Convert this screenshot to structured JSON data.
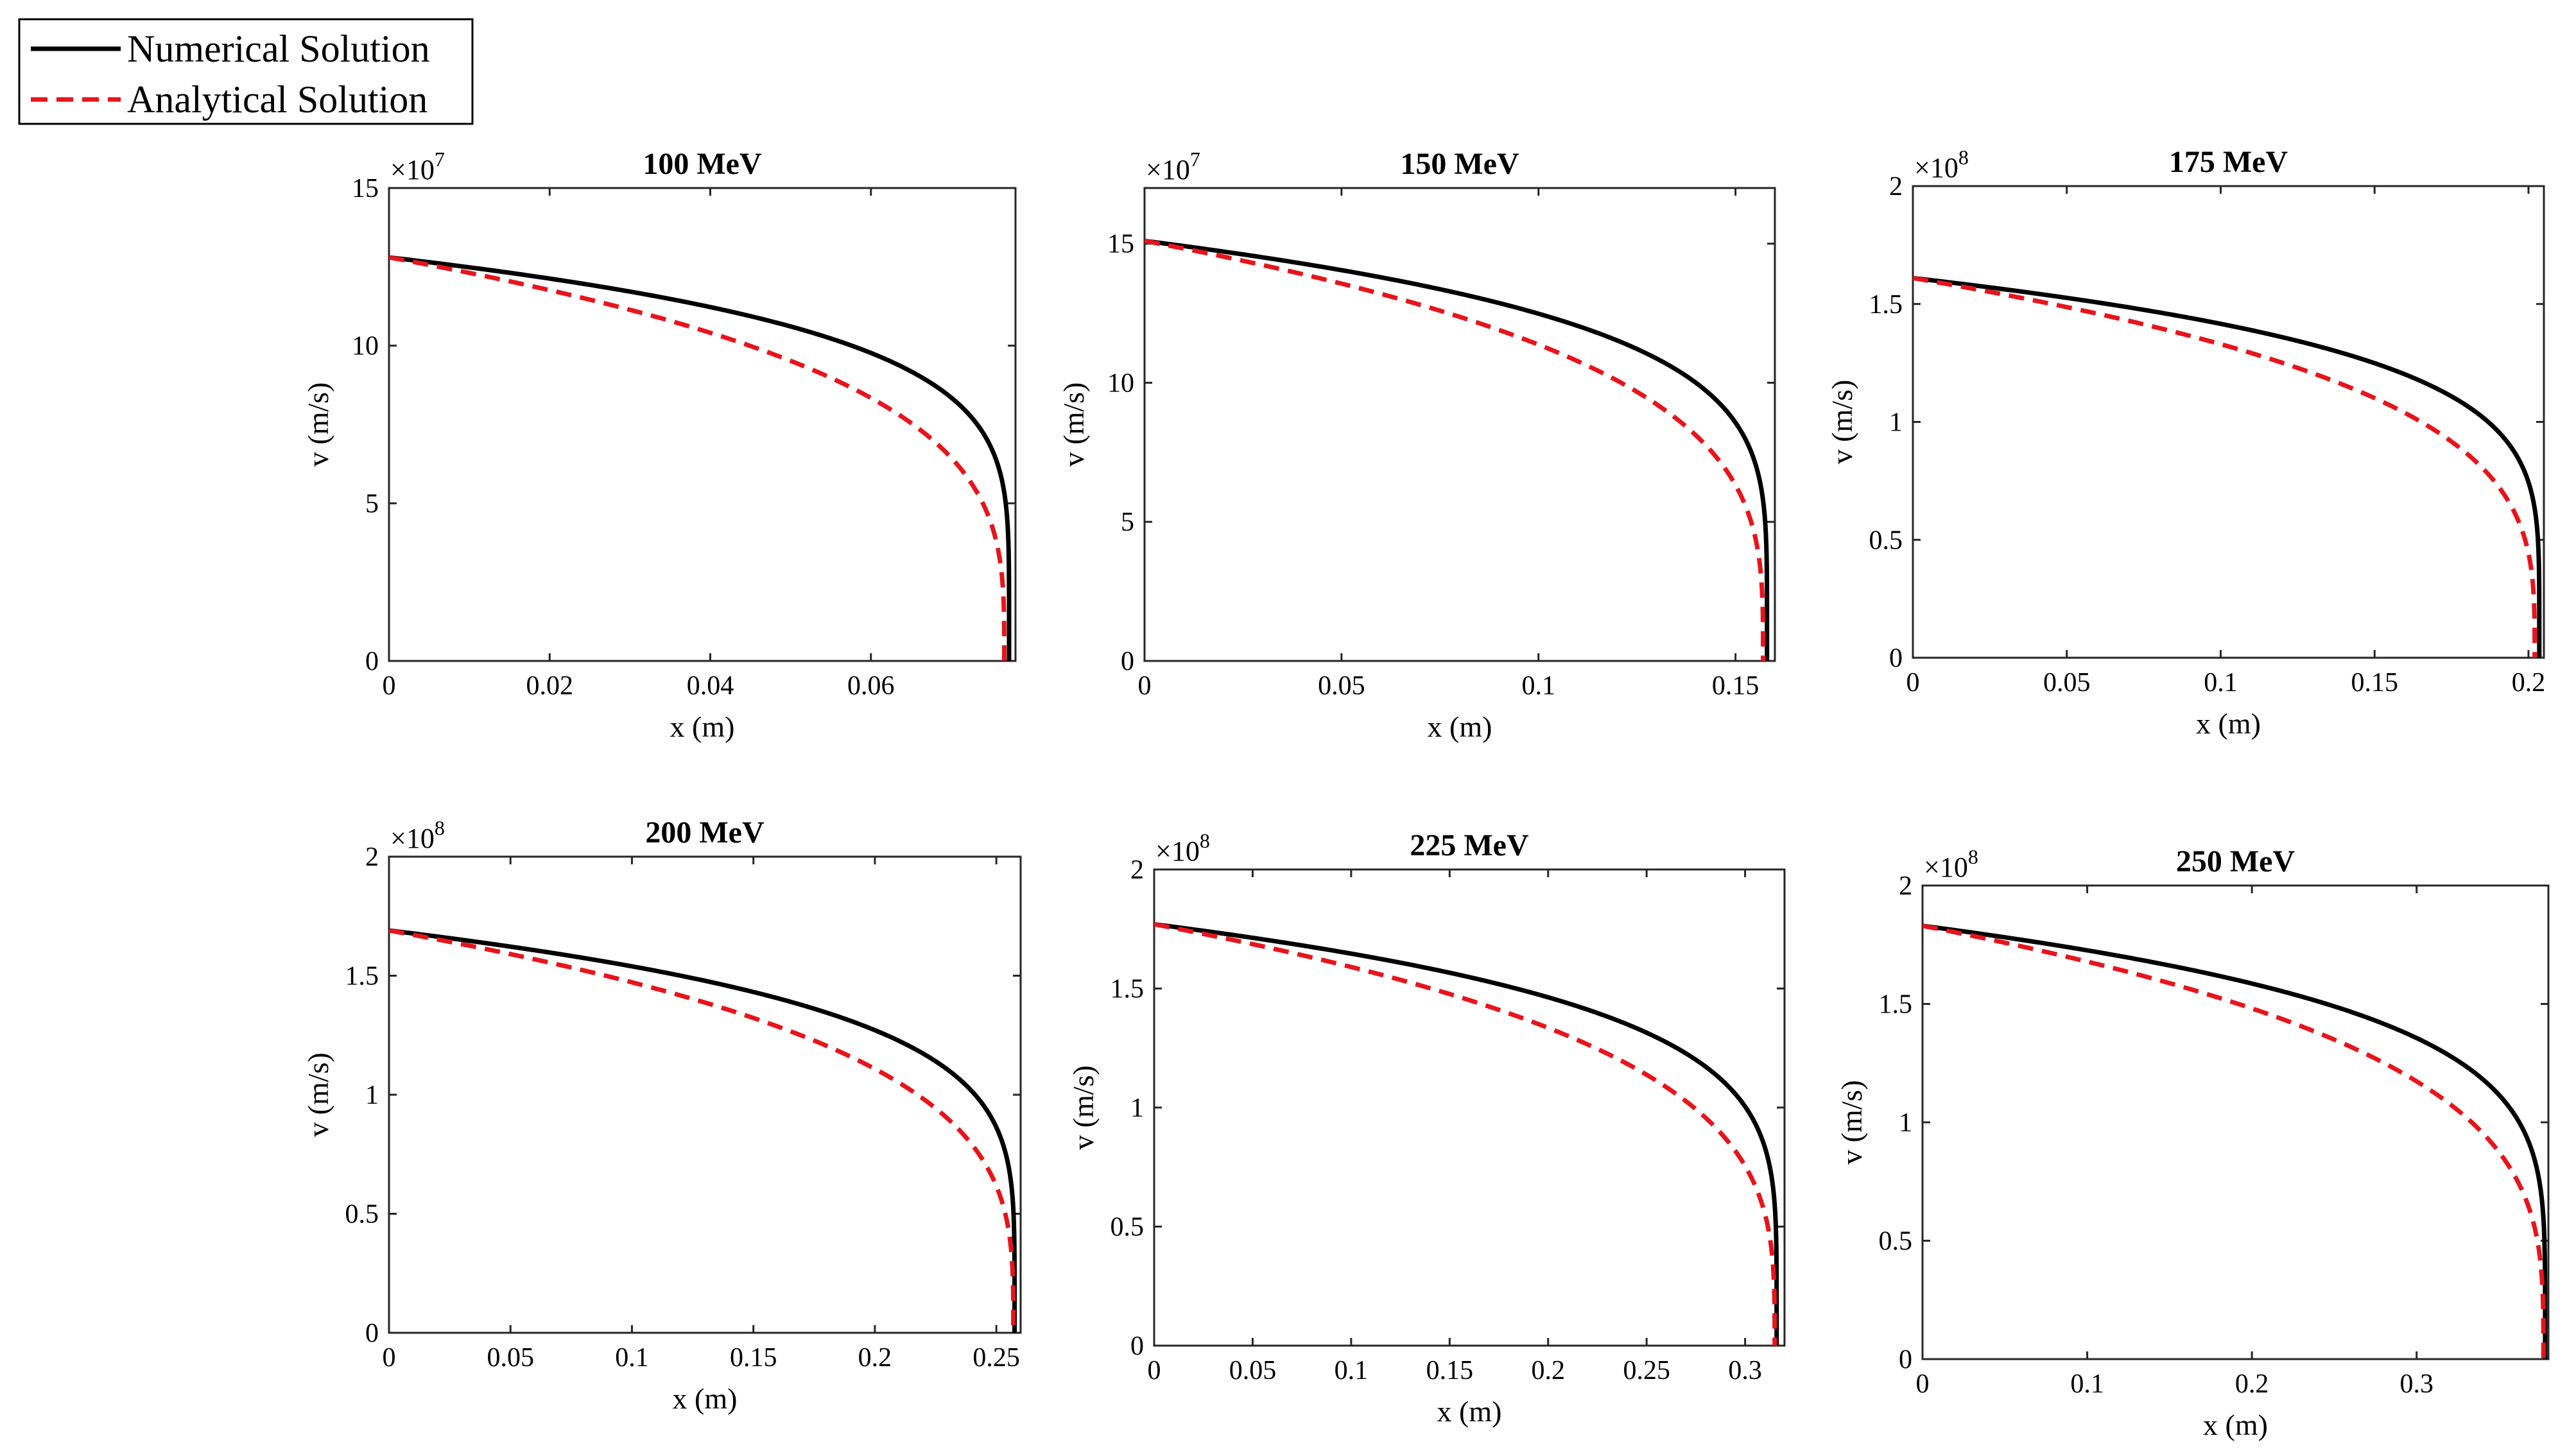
{
  "legend": {
    "entries": [
      {
        "label": "Numerical Solution",
        "color": "#000000",
        "style": "solid"
      },
      {
        "label": "Analytical Solution",
        "color": "#e8141c",
        "style": "dashed"
      }
    ],
    "position": "top-left"
  },
  "chart_data": [
    {
      "type": "line",
      "title": "100 MeV",
      "xlabel": "x (m)",
      "ylabel": "v (m/s)",
      "xlim": [
        0,
        0.078
      ],
      "ylim": [
        0,
        15
      ],
      "y_multiplier": "×10",
      "y_exponent": "7",
      "xticks": [
        0,
        0.02,
        0.04,
        0.06
      ],
      "xtick_labels": [
        "0",
        "0.02",
        "0.04",
        "0.06"
      ],
      "yticks": [
        0,
        5,
        10,
        15
      ],
      "ytick_labels": [
        "0",
        "5",
        "10",
        "15"
      ],
      "series": [
        {
          "name": "Numerical Solution",
          "v0": 12.8,
          "range": 0.0772,
          "shape_exponent": 0.18
        },
        {
          "name": "Analytical Solution",
          "v0": 12.8,
          "range": 0.0766,
          "shape_exponent": 0.28
        }
      ]
    },
    {
      "type": "line",
      "title": "150 MeV",
      "xlabel": "x (m)",
      "ylabel": "v (m/s)",
      "xlim": [
        0,
        0.16
      ],
      "ylim": [
        0,
        17
      ],
      "y_multiplier": "×10",
      "y_exponent": "7",
      "xticks": [
        0,
        0.05,
        0.1,
        0.15
      ],
      "xtick_labels": [
        "0",
        "0.05",
        "0.1",
        "0.15"
      ],
      "yticks": [
        0,
        5,
        10,
        15
      ],
      "ytick_labels": [
        "0",
        "5",
        "10",
        "15"
      ],
      "series": [
        {
          "name": "Numerical Solution",
          "v0": 15.1,
          "range": 0.158,
          "shape_exponent": 0.19
        },
        {
          "name": "Analytical Solution",
          "v0": 15.1,
          "range": 0.157,
          "shape_exponent": 0.28
        }
      ]
    },
    {
      "type": "line",
      "title": "175 MeV",
      "xlabel": "x (m)",
      "ylabel": "v (m/s)",
      "xlim": [
        0,
        0.205
      ],
      "ylim": [
        0,
        2
      ],
      "y_multiplier": "×10",
      "y_exponent": "8",
      "xticks": [
        0,
        0.05,
        0.1,
        0.15,
        0.2
      ],
      "xtick_labels": [
        "0",
        "0.05",
        "0.1",
        "0.15",
        "0.2"
      ],
      "yticks": [
        0,
        0.5,
        1,
        1.5,
        2
      ],
      "ytick_labels": [
        "0",
        "0.5",
        "1",
        "1.5",
        "2"
      ],
      "series": [
        {
          "name": "Numerical Solution",
          "v0": 1.61,
          "range": 0.2035,
          "shape_exponent": 0.19
        },
        {
          "name": "Analytical Solution",
          "v0": 1.61,
          "range": 0.202,
          "shape_exponent": 0.28
        }
      ]
    },
    {
      "type": "line",
      "title": "200 MeV",
      "xlabel": "x (m)",
      "ylabel": "v (m/s)",
      "xlim": [
        0,
        0.26
      ],
      "ylim": [
        0,
        2
      ],
      "y_multiplier": "×10",
      "y_exponent": "8",
      "xticks": [
        0,
        0.05,
        0.1,
        0.15,
        0.2,
        0.25
      ],
      "xtick_labels": [
        "0",
        "0.05",
        "0.1",
        "0.15",
        "0.2",
        "0.25"
      ],
      "yticks": [
        0,
        0.5,
        1,
        1.5,
        2
      ],
      "ytick_labels": [
        "0",
        "0.5",
        "1",
        "1.5",
        "2"
      ],
      "series": [
        {
          "name": "Numerical Solution",
          "v0": 1.69,
          "range": 0.2575,
          "shape_exponent": 0.19
        },
        {
          "name": "Analytical Solution",
          "v0": 1.69,
          "range": 0.257,
          "shape_exponent": 0.28
        }
      ]
    },
    {
      "type": "line",
      "title": "225 MeV",
      "xlabel": "x (m)",
      "ylabel": "v (m/s)",
      "xlim": [
        0,
        0.32
      ],
      "ylim": [
        0,
        2
      ],
      "y_multiplier": "×10",
      "y_exponent": "8",
      "xticks": [
        0,
        0.05,
        0.1,
        0.15,
        0.2,
        0.25,
        0.3
      ],
      "xtick_labels": [
        "0",
        "0.05",
        "0.1",
        "0.15",
        "0.2",
        "0.25",
        "0.3"
      ],
      "yticks": [
        0,
        0.5,
        1,
        1.5,
        2
      ],
      "ytick_labels": [
        "0",
        "0.5",
        "1",
        "1.5",
        "2"
      ],
      "series": [
        {
          "name": "Numerical Solution",
          "v0": 1.77,
          "range": 0.316,
          "shape_exponent": 0.19
        },
        {
          "name": "Analytical Solution",
          "v0": 1.77,
          "range": 0.315,
          "shape_exponent": 0.28
        }
      ]
    },
    {
      "type": "line",
      "title": "250 MeV",
      "xlabel": "x (m)",
      "ylabel": "v (m/s)",
      "xlim": [
        0,
        0.38
      ],
      "ylim": [
        0,
        2
      ],
      "y_multiplier": "×10",
      "y_exponent": "8",
      "xticks": [
        0,
        0.1,
        0.2,
        0.3
      ],
      "xtick_labels": [
        "0",
        "0.1",
        "0.2",
        "0.3"
      ],
      "yticks": [
        0,
        0.5,
        1,
        1.5,
        2
      ],
      "ytick_labels": [
        "0",
        "0.5",
        "1",
        "1.5",
        "2"
      ],
      "series": [
        {
          "name": "Numerical Solution",
          "v0": 1.83,
          "range": 0.378,
          "shape_exponent": 0.19
        },
        {
          "name": "Analytical Solution",
          "v0": 1.83,
          "range": 0.377,
          "shape_exponent": 0.28
        }
      ]
    }
  ]
}
